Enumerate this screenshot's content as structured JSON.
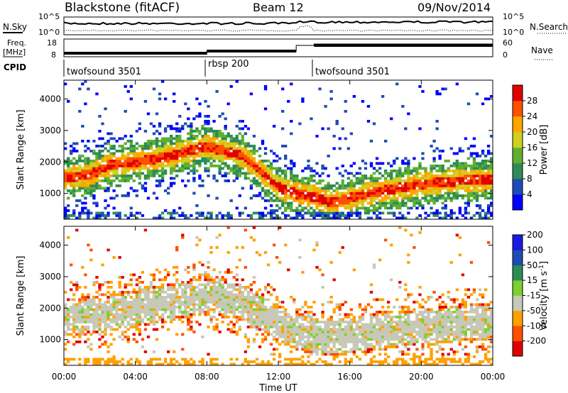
{
  "header": {
    "title": "Blackstone (fitACF)",
    "beam": "Beam 12",
    "date": "09/Nov/2014"
  },
  "colors": {
    "power": [
      "#0000ff",
      "#1e4cb4",
      "#2e8b57",
      "#5fb030",
      "#cfd020",
      "#ffa500",
      "#ff5000",
      "#e00000"
    ],
    "velocity": [
      "#e00000",
      "#ff5000",
      "#ffa000",
      "#c8c8b8",
      "#7cd030",
      "#2e8b57",
      "#1e4cb4",
      "#1a1ae0"
    ]
  },
  "top_panel": {
    "label_left": "N.Sky",
    "label_right": "N.Search",
    "ticks_left": [
      "10^5",
      "10^0"
    ],
    "ticks_right": [
      "10^5",
      "10^0"
    ]
  },
  "freq_panel": {
    "label_left_1": "Freq.",
    "label_left_2": "[MHz]",
    "label_right": "Nave",
    "ticks_left": [
      "18",
      "8"
    ],
    "ticks_right": [
      "60",
      "0"
    ]
  },
  "cpid": {
    "label": "CPID",
    "segments": [
      "twofsound 3501",
      "rbsp 200",
      "twofsound 3501"
    ]
  },
  "time_axis": {
    "label": "Time UT",
    "ticks": [
      "00:00",
      "04:00",
      "08:00",
      "12:00",
      "16:00",
      "20:00",
      "00:00"
    ]
  },
  "chart_data": [
    {
      "type": "heatmap",
      "title": "",
      "xlabel": "Time UT",
      "ylabel": "Slant Range [km]",
      "x_ticks": [
        "00:00",
        "04:00",
        "08:00",
        "12:00",
        "16:00",
        "20:00",
        "00:00"
      ],
      "y_ticks": [
        1000,
        2000,
        3000,
        4000
      ],
      "ylim": [
        180,
        4600
      ],
      "xlim_hours": [
        0,
        24
      ],
      "colorbar_label": "Power [dB]",
      "colorbar_ticks": [
        4,
        8,
        12,
        16,
        20,
        24,
        28
      ],
      "colorbar_range": [
        0,
        32
      ],
      "echo_band": {
        "time_hours": [
          0,
          1.5,
          2.5,
          4,
          6,
          8,
          10,
          12,
          13,
          14,
          15,
          17,
          20,
          22,
          24
        ],
        "center_range_km": [
          1500,
          1600,
          1900,
          2000,
          2200,
          2500,
          2200,
          1200,
          1000,
          900,
          700,
          1000,
          1300,
          1400,
          1450
        ]
      }
    },
    {
      "type": "heatmap",
      "title": "",
      "xlabel": "Time UT",
      "ylabel": "Slant Range [km]",
      "x_ticks": [
        "00:00",
        "04:00",
        "08:00",
        "12:00",
        "16:00",
        "20:00",
        "00:00"
      ],
      "y_ticks": [
        1000,
        2000,
        3000,
        4000
      ],
      "ylim": [
        180,
        4600
      ],
      "xlim_hours": [
        0,
        24
      ],
      "colorbar_label": "Velocity [m s^-1]",
      "colorbar_ticks": [
        -200,
        -100,
        -50,
        -15,
        15,
        50,
        100,
        200
      ],
      "echo_band": {
        "time_hours": [
          0,
          2,
          4,
          6,
          8,
          10,
          12,
          13,
          14,
          16,
          18,
          20,
          22,
          24
        ],
        "center_range_km": [
          1700,
          1800,
          2000,
          2200,
          2400,
          2200,
          1500,
          1300,
          1100,
          1100,
          1300,
          1400,
          1500,
          1600
        ]
      }
    }
  ]
}
